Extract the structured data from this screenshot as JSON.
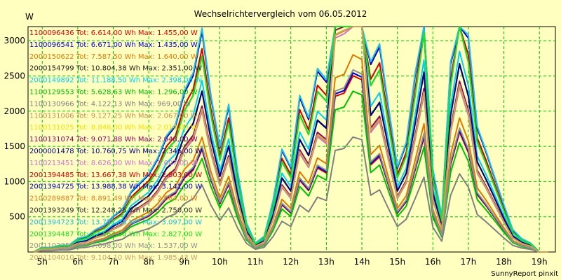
{
  "chart_data": {
    "type": "line",
    "title": "Wechselrichtervergleich vom 06.05.2012",
    "ylabel": "W",
    "xlabel": "",
    "footer": "SunnyReport pinxit",
    "ylim": [
      0,
      3200
    ],
    "yticks": [
      500,
      1000,
      1500,
      2000,
      2500,
      3000
    ],
    "xticks": [
      "5h",
      "6h",
      "7h",
      "8h",
      "9h",
      "10h",
      "11h",
      "12h",
      "13h",
      "14h",
      "15h",
      "16h",
      "17h",
      "18h",
      "19h"
    ],
    "grid": true,
    "legend_position": "top-left inside plot",
    "x": [
      4.75,
      5.0,
      5.25,
      5.5,
      5.75,
      6.0,
      6.25,
      6.5,
      6.75,
      7.0,
      7.25,
      7.5,
      7.75,
      8.0,
      8.25,
      8.5,
      8.75,
      9.0,
      9.25,
      9.5,
      9.75,
      10.0,
      10.25,
      10.5,
      10.75,
      11.0,
      11.25,
      11.5,
      11.75,
      12.0,
      12.25,
      12.5,
      12.75,
      13.0,
      13.25,
      13.5,
      13.75,
      14.0,
      14.25,
      14.5,
      14.75,
      15.0,
      15.25,
      15.5,
      15.75,
      16.0,
      16.25,
      16.5,
      16.75,
      17.0,
      17.25,
      17.5,
      17.75,
      18.0,
      18.25,
      18.5,
      18.75,
      19.0,
      19.25
    ],
    "profile": [
      0.0,
      0.02,
      0.02,
      0.03,
      0.03,
      0.06,
      0.07,
      0.1,
      0.12,
      0.16,
      0.19,
      0.27,
      0.31,
      0.35,
      0.42,
      0.52,
      0.57,
      0.72,
      0.8,
      1.0,
      0.7,
      0.47,
      0.66,
      0.36,
      0.13,
      0.04,
      0.07,
      0.23,
      0.46,
      0.38,
      0.7,
      0.6,
      0.82,
      0.77,
      1.52,
      1.55,
      1.72,
      1.68,
      0.85,
      0.93,
      0.65,
      0.38,
      0.49,
      0.8,
      1.12,
      0.37,
      0.16,
      0.85,
      1.17,
      0.97,
      0.56,
      0.45,
      0.33,
      0.21,
      0.1,
      0.06,
      0.04,
      0.0,
      0.0
    ],
    "series": [
      {
        "name": "1100096436",
        "label": "1100096436 Tot: 6.614,00 Wh Max: 1.455,00 W",
        "color": "#e00000",
        "peak": 1455
      },
      {
        "name": "1100096541",
        "label": "1100096541 Tot: 6.671,00 Wh Max: 1.435,00 W",
        "color": "#0000d0",
        "peak": 1435
      },
      {
        "name": "2000150622",
        "label": "2000150622 Tot: 7.587,50 Wh Max: 1.640,00 W",
        "color": "#e07800",
        "peak": 1640
      },
      {
        "name": "2000154799",
        "label": "2000154799 Tot: 10.804,38 Wh Max: 2.351,00 W",
        "color": "#202020",
        "peak": 2351
      },
      {
        "name": "2000149892",
        "label": "2000149892 Tot: 11.188,50 Wh Max: 2.398,00 W",
        "color": "#00d0f0",
        "peak": 2398
      },
      {
        "name": "1100129553",
        "label": "1100129553 Tot: 5.628,63 Wh Max: 1.296,00 W",
        "color": "#00c000",
        "peak": 1296
      },
      {
        "name": "1100130966",
        "label": "1100130966 Tot: 4.122,13 Wh Max: 969,00 W",
        "color": "#808080",
        "peak": 969
      },
      {
        "name": "1100131006",
        "label": "1100131006 Tot: 9.127,25 Wh Max: 2.067,00 W",
        "color": "#c89050",
        "peak": 2067
      },
      {
        "name": "1100131025",
        "label": "1100131025 Tot: 8.846,00 Wh Max: 2.014,00 W",
        "color": "#f0e000",
        "peak": 2014
      },
      {
        "name": "1100131074",
        "label": "1100131074 Tot: 9.071,88 Wh Max: 2.048,00 W",
        "color": "#900060",
        "peak": 2048
      },
      {
        "name": "2000001478",
        "label": "2000001478 Tot: 10.760,75 Wh Max: 2.346,00 W",
        "color": "#000080",
        "peak": 2346
      },
      {
        "name": "1100213451",
        "label": "1100213451 Tot: 8.626,00 Wh Max: 2.007,00 W",
        "color": "#d070d0",
        "peak": 2007
      },
      {
        "name": "2001394485",
        "label": "2001394485 Tot: 13.667,38 Wh Max: 2.803,00 W",
        "color": "#d00000",
        "peak": 2803
      },
      {
        "name": "2001394725",
        "label": "2001394725 Tot: 13.988,38 Wh Max: 3.141,00 W",
        "color": "#0000c0",
        "peak": 3141
      },
      {
        "name": "2100289887",
        "label": "2100289887 Tot: 8.891,49 Wh Max: 2.084,00 W",
        "color": "#e08020",
        "peak": 2084
      },
      {
        "name": "2001393249",
        "label": "2001393249 Tot: 12.248,25 Wh Max: 2.750,00 W",
        "color": "#303030",
        "peak": 2750
      },
      {
        "name": "2001394723",
        "label": "2001394723 Tot: 13.757,88 Wh Max: 3.097,00 W",
        "color": "#20c0e0",
        "peak": 3097
      },
      {
        "name": "2001394487",
        "label": "2001394487 Tot: 12.567,00 Wh Max: 2.827,00 W",
        "color": "#20e020",
        "peak": 2827
      },
      {
        "name": "2001102358",
        "label": "2001102358 Tot: 7.098,00 Wh Max: 1.537,00 W",
        "color": "#909090",
        "peak": 1537
      },
      {
        "name": "2001104010",
        "label": "2001104010 Tot: 9.104,10 Wh Max: 1.985,43 W",
        "color": "#c8a060",
        "peak": 1985
      }
    ]
  }
}
